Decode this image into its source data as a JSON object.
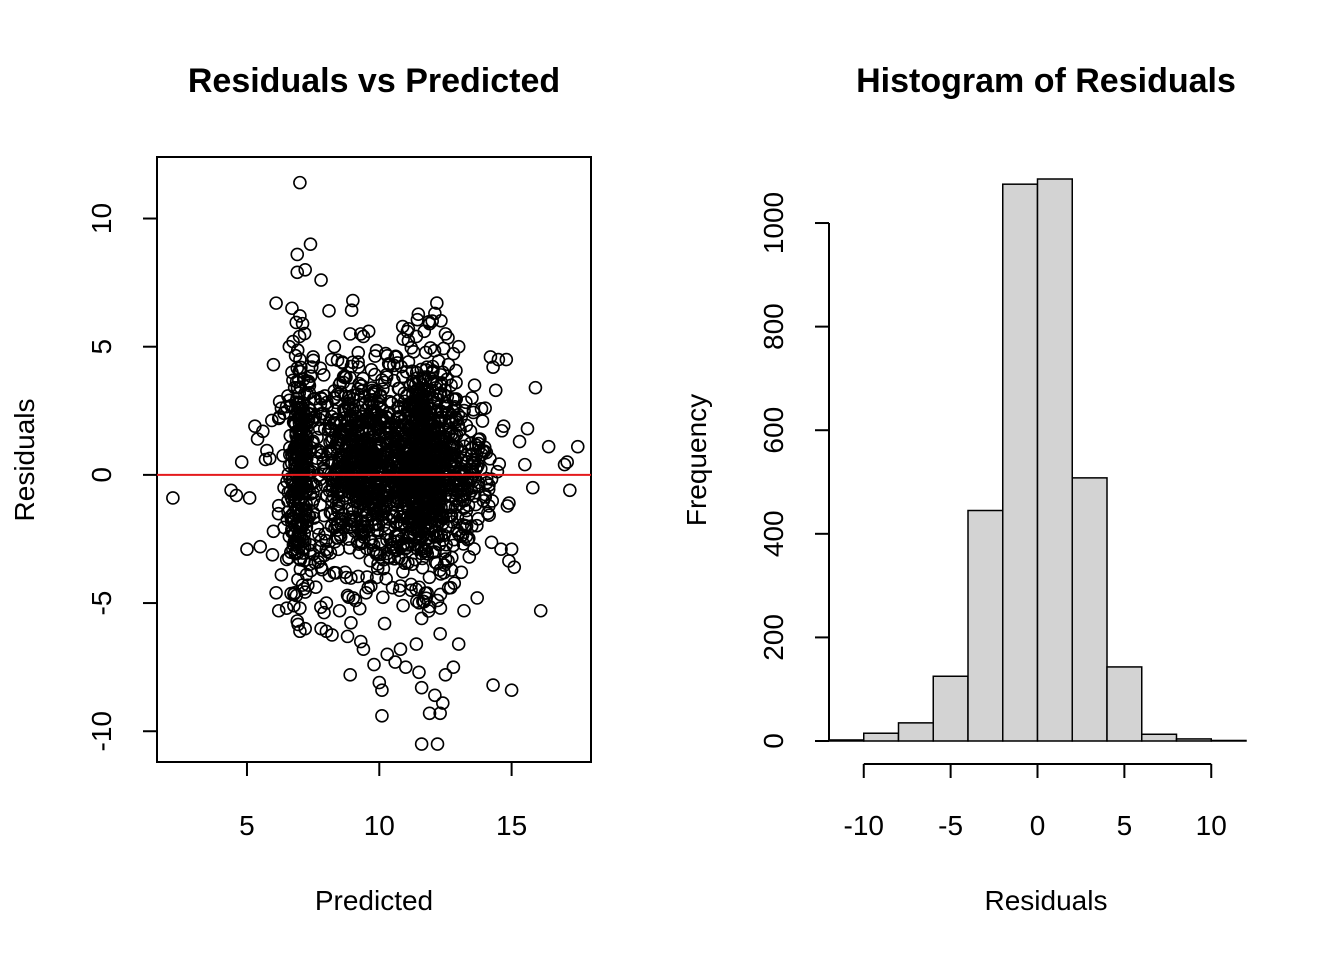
{
  "chart_data": [
    {
      "type": "scatter",
      "title": "Residuals vs Predicted",
      "xlabel": "Predicted",
      "ylabel": "Residuals",
      "xlim": [
        1.6,
        18.0
      ],
      "ylim": [
        -11.2,
        12.4
      ],
      "x_ticks": [
        5,
        10,
        15
      ],
      "x_tick_labels": [
        "5",
        "10",
        "15"
      ],
      "y_ticks": [
        -10,
        -5,
        0,
        5,
        10
      ],
      "y_tick_labels": [
        "-10",
        "-5",
        "0",
        "5",
        "10"
      ],
      "reference_line": {
        "y": 0,
        "color": "#e41a1c"
      },
      "box": true,
      "grid": false,
      "point_color": "#000000",
      "points": [
        [
          2.2,
          -0.9
        ],
        [
          4.4,
          -0.6
        ],
        [
          4.6,
          -0.8
        ],
        [
          5.0,
          -2.9
        ],
        [
          5.1,
          -0.9
        ],
        [
          5.5,
          -2.8
        ],
        [
          5.3,
          1.9
        ],
        [
          5.4,
          1.4
        ],
        [
          5.6,
          1.7
        ],
        [
          5.7,
          0.6
        ],
        [
          6.0,
          4.3
        ],
        [
          6.1,
          6.7
        ],
        [
          6.2,
          2.2
        ],
        [
          6.1,
          -4.6
        ],
        [
          6.2,
          -5.3
        ],
        [
          6.3,
          -3.9
        ],
        [
          6.5,
          -5.2
        ],
        [
          6.2,
          -1.2
        ],
        [
          6.4,
          -0.5
        ],
        [
          6.0,
          -2.2
        ],
        [
          6.6,
          5.0
        ],
        [
          6.7,
          4.0
        ],
        [
          6.7,
          6.5
        ],
        [
          6.8,
          3.4
        ],
        [
          6.9,
          8.6
        ],
        [
          6.9,
          7.9
        ],
        [
          7.0,
          11.4
        ],
        [
          7.0,
          6.2
        ],
        [
          7.1,
          5.9
        ],
        [
          7.0,
          4.5
        ],
        [
          6.9,
          -5.7
        ],
        [
          7.0,
          -6.1
        ],
        [
          7.0,
          -5.2
        ],
        [
          7.1,
          -4.3
        ],
        [
          6.8,
          -4.6
        ],
        [
          7.2,
          8.0
        ],
        [
          7.4,
          9.0
        ],
        [
          7.2,
          -6.0
        ],
        [
          7.8,
          -6.0
        ],
        [
          8.0,
          -6.1
        ],
        [
          7.8,
          7.6
        ],
        [
          8.1,
          6.4
        ],
        [
          8.3,
          5.0
        ],
        [
          8.6,
          4.4
        ],
        [
          8.9,
          5.5
        ],
        [
          9.0,
          6.8
        ],
        [
          9.3,
          5.5
        ],
        [
          9.6,
          5.6
        ],
        [
          9.4,
          5.4
        ],
        [
          8.8,
          -6.3
        ],
        [
          8.9,
          -7.8
        ],
        [
          9.4,
          -6.8
        ],
        [
          9.3,
          -6.5
        ],
        [
          9.8,
          -7.4
        ],
        [
          10.0,
          -8.1
        ],
        [
          10.1,
          -8.4
        ],
        [
          10.1,
          -9.4
        ],
        [
          10.3,
          -7.0
        ],
        [
          10.6,
          -7.3
        ],
        [
          10.8,
          -6.8
        ],
        [
          10.6,
          4.6
        ],
        [
          10.9,
          5.3
        ],
        [
          11.1,
          5.7
        ],
        [
          11.4,
          5.4
        ],
        [
          11.7,
          5.6
        ],
        [
          11.9,
          5.9
        ],
        [
          12.1,
          6.3
        ],
        [
          12.0,
          6.0
        ],
        [
          12.5,
          5.5
        ],
        [
          13.0,
          5.0
        ],
        [
          11.0,
          -7.5
        ],
        [
          11.4,
          -6.6
        ],
        [
          11.5,
          -7.7
        ],
        [
          11.6,
          -8.3
        ],
        [
          11.6,
          -10.5
        ],
        [
          11.9,
          -9.3
        ],
        [
          12.2,
          -10.5
        ],
        [
          12.3,
          -9.3
        ],
        [
          12.4,
          -8.9
        ],
        [
          12.5,
          -7.8
        ],
        [
          12.1,
          -8.6
        ],
        [
          12.3,
          -6.2
        ],
        [
          12.8,
          -7.5
        ],
        [
          13.0,
          -6.6
        ],
        [
          13.2,
          -5.3
        ],
        [
          13.7,
          -4.8
        ],
        [
          14.2,
          4.6
        ],
        [
          14.5,
          4.5
        ],
        [
          14.8,
          4.5
        ],
        [
          14.3,
          4.2
        ],
        [
          14.3,
          -8.2
        ],
        [
          15.0,
          -8.4
        ],
        [
          15.1,
          -3.6
        ],
        [
          15.0,
          -2.9
        ],
        [
          14.6,
          -2.9
        ],
        [
          15.3,
          1.3
        ],
        [
          15.6,
          1.8
        ],
        [
          15.9,
          3.4
        ],
        [
          16.4,
          1.1
        ],
        [
          16.1,
          -5.3
        ],
        [
          17.0,
          0.4
        ],
        [
          17.1,
          0.5
        ],
        [
          17.2,
          -0.6
        ],
        [
          17.5,
          1.1
        ],
        [
          15.5,
          0.4
        ],
        [
          15.8,
          -0.5
        ],
        [
          14.9,
          -1.1
        ],
        [
          14.1,
          -1.5
        ],
        [
          14.0,
          2.6
        ],
        [
          13.8,
          1.4
        ],
        [
          13.5,
          3.0
        ],
        [
          13.3,
          -2.0
        ],
        [
          14.7,
          1.9
        ],
        [
          6.4,
          2.4
        ],
        [
          6.3,
          2.6
        ],
        [
          6.5,
          -3.3
        ],
        [
          6.6,
          -2.4
        ],
        [
          7.3,
          -4.3
        ],
        [
          7.5,
          -3.1
        ],
        [
          7.8,
          -3.6
        ],
        [
          8.0,
          -5.0
        ],
        [
          8.5,
          -5.3
        ],
        [
          8.8,
          -4.7
        ],
        [
          9.1,
          -4.9
        ],
        [
          9.5,
          -4.6
        ],
        [
          9.9,
          -4.0
        ],
        [
          10.2,
          -5.8
        ],
        [
          10.5,
          -4.4
        ],
        [
          10.9,
          -5.1
        ],
        [
          11.2,
          -4.5
        ],
        [
          11.6,
          -5.6
        ],
        [
          12.2,
          -4.9
        ],
        [
          12.7,
          -4.4
        ],
        [
          13.1,
          -3.8
        ],
        [
          13.4,
          -3.2
        ],
        [
          7.5,
          4.6
        ],
        [
          7.9,
          3.9
        ],
        [
          8.2,
          4.5
        ],
        [
          8.7,
          3.8
        ],
        [
          9.2,
          4.4
        ],
        [
          9.7,
          4.1
        ],
        [
          10.1,
          3.7
        ],
        [
          10.4,
          4.3
        ],
        [
          11.3,
          4.8
        ],
        [
          11.8,
          4.2
        ],
        [
          12.4,
          4.0
        ],
        [
          12.9,
          3.6
        ],
        [
          13.6,
          3.5
        ],
        [
          14.4,
          3.3
        ],
        [
          13.9,
          2.1
        ]
      ],
      "dense_regions": [
        {
          "x_center": 7.0,
          "x_sd": 0.22,
          "y_center": 0.2,
          "y_sd": 2.3,
          "n": 260
        },
        {
          "x_center": 9.5,
          "x_sd": 1.25,
          "y_center": 0.2,
          "y_sd": 1.9,
          "n": 900
        },
        {
          "x_center": 11.7,
          "x_sd": 0.55,
          "y_center": 0.3,
          "y_sd": 2.2,
          "n": 620
        },
        {
          "x_center": 13.2,
          "x_sd": 0.6,
          "y_center": 0.1,
          "y_sd": 1.6,
          "n": 170
        }
      ]
    },
    {
      "type": "bar",
      "title": "Histogram of Residuals",
      "xlabel": "Residuals",
      "ylabel": "Frequency",
      "bin_edges": [
        -12,
        -10,
        -8,
        -6,
        -4,
        -2,
        0,
        2,
        4,
        6,
        8,
        10,
        12
      ],
      "values": [
        2,
        15,
        35,
        125,
        445,
        1075,
        1085,
        508,
        143,
        13,
        4,
        1
      ],
      "xlim": [
        -12,
        12
      ],
      "ylim": [
        0,
        1085
      ],
      "x_ticks": [
        -10,
        -5,
        0,
        5,
        10
      ],
      "x_tick_labels": [
        "-10",
        "-5",
        "0",
        "5",
        "10"
      ],
      "y_ticks": [
        0,
        200,
        400,
        600,
        800,
        1000
      ],
      "y_tick_labels": [
        "0",
        "200",
        "400",
        "600",
        "800",
        "1000"
      ],
      "bar_color": "#d3d3d3",
      "grid": false
    }
  ]
}
